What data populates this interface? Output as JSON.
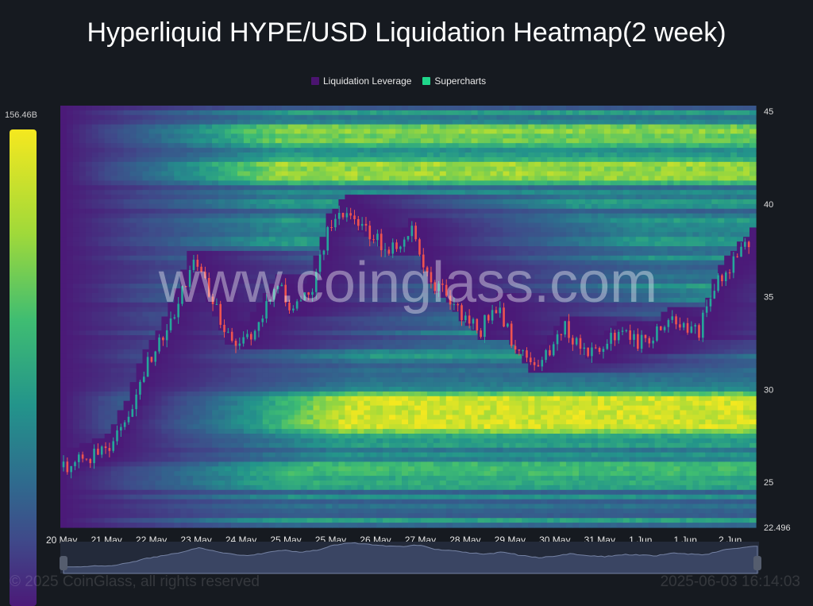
{
  "title": "Hyperliquid HYPE/USD Liquidation Heatmap(2 week)",
  "legend": [
    {
      "label": "Liquidation Leverage",
      "color": "#4b1470"
    },
    {
      "label": "Supercharts",
      "color": "#1fd68a"
    }
  ],
  "colorbar": {
    "max_label": "156.46B"
  },
  "watermark": "www.coinglass.com",
  "footer": {
    "copyright": "© 2025 CoinGlass, all rights reserved",
    "timestamp": "2025-06-03 16:14:03"
  },
  "chart_data": {
    "type": "heatmap",
    "title": "Hyperliquid HYPE/USD Liquidation Heatmap(2 week)",
    "ylim": [
      22.496,
      45
    ],
    "y_ticks": [
      45,
      40,
      35,
      30,
      25
    ],
    "y_min_label": "22.496",
    "x_ticks": [
      "20 May",
      "21 May",
      "22 May",
      "23 May",
      "24 May",
      "25 May",
      "25 May",
      "26 May",
      "27 May",
      "28 May",
      "29 May",
      "30 May",
      "31 May",
      "1 Jun",
      "1 Jun",
      "2 Jun"
    ],
    "grid": false,
    "legend_position": "top",
    "colorscale": [
      "#4b1a78",
      "#3f4a8a",
      "#2f6b8e",
      "#23948b",
      "#3fbd72",
      "#9fd93a",
      "#f5e81f"
    ],
    "price_series": [
      25.8,
      26.2,
      26.5,
      26.8,
      28.5,
      31,
      32.5,
      34.5,
      37,
      35,
      33,
      32.5,
      34,
      35.5,
      34.2,
      35.5,
      38.5,
      39.7,
      38.8,
      38,
      37.5,
      38.5,
      36,
      35.2,
      34,
      33.2,
      34.5,
      32.5,
      31.2,
      32,
      33.5,
      32.2,
      31.8,
      33,
      32.8,
      32.3,
      33.8,
      33.2,
      33,
      35.8,
      36.8,
      37.8
    ],
    "liquidation_peaks": [
      {
        "price": 29.0,
        "intensity": 1.0
      },
      {
        "price": 28.0,
        "intensity": 0.6
      },
      {
        "price": 41.5,
        "intensity": 0.55
      },
      {
        "price": 43.5,
        "intensity": 0.45
      },
      {
        "price": 25.5,
        "intensity": 0.35
      }
    ]
  }
}
